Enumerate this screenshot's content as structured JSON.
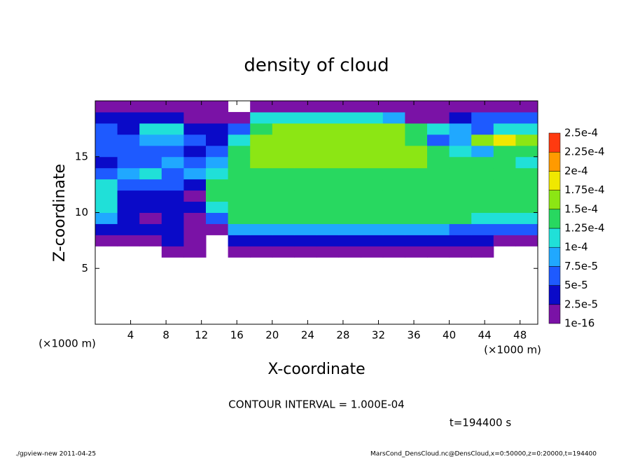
{
  "chart_data": {
    "type": "heatmap",
    "title": "density of cloud",
    "xlabel": "X-coordinate",
    "ylabel": "Z-coordinate",
    "xunit": "(×1000 m)",
    "yunit": "(×1000 m)",
    "annotation": "CONTOUR INTERVAL = 1.000E-04",
    "time": "t=194400 s",
    "footer_left": "./gpview-new  2011-04-25",
    "footer_right": "MarsCond_DensCloud.nc@DensCloud,x=0:50000,z=0:20000,t=194400",
    "xlim": [
      0,
      50
    ],
    "ylim": [
      0,
      20
    ],
    "xticks": [
      4,
      8,
      12,
      16,
      20,
      24,
      28,
      32,
      36,
      40,
      44,
      48
    ],
    "yticks": [
      5,
      10,
      15
    ],
    "levels": [
      {
        "value": 1e-16,
        "label": "1e-16"
      },
      {
        "value": 2.5e-05,
        "label": "2.5e-5"
      },
      {
        "value": 5e-05,
        "label": "5e-5"
      },
      {
        "value": 7.5e-05,
        "label": "7.5e-5"
      },
      {
        "value": 0.0001,
        "label": "1e-4"
      },
      {
        "value": 0.000125,
        "label": "1.25e-4"
      },
      {
        "value": 0.00015,
        "label": "1.5e-4"
      },
      {
        "value": 0.000175,
        "label": "1.75e-4"
      },
      {
        "value": 0.0002,
        "label": "2e-4"
      },
      {
        "value": 0.000225,
        "label": "2.25e-4"
      },
      {
        "value": 0.00025,
        "label": "2.5e-4"
      }
    ],
    "colors": [
      "#7a12a6",
      "#0a0ac8",
      "#1e5aff",
      "#20a8ff",
      "#20e0d8",
      "#28d860",
      "#8ce614",
      "#f0e800",
      "#ff9a00",
      "#ff3a10"
    ],
    "x": [
      1.25,
      3.75,
      6.25,
      8.75,
      11.25,
      13.75,
      16.25,
      18.75,
      21.25,
      23.75,
      26.25,
      28.75,
      31.25,
      33.75,
      36.25,
      38.75,
      41.25,
      43.75,
      46.25,
      48.75
    ],
    "y": [
      6.5,
      7.5,
      8.5,
      9.5,
      10.5,
      11.5,
      12.5,
      13.5,
      14.5,
      15.5,
      16.5,
      17.5,
      18.5,
      19.5
    ],
    "z": [
      [
        null,
        null,
        null,
        1.2e-05,
        1.2e-05,
        null,
        1.5e-05,
        1.5e-05,
        1.5e-05,
        1.5e-05,
        1.5e-05,
        1.5e-05,
        1.5e-05,
        1.5e-05,
        1.5e-05,
        1.5e-05,
        1.5e-05,
        1.5e-05,
        null,
        null
      ],
      [
        1.5e-05,
        2e-05,
        2e-05,
        2.5e-05,
        2e-05,
        null,
        4e-05,
        4.5e-05,
        4.5e-05,
        4.5e-05,
        4.5e-05,
        4.5e-05,
        4.5e-05,
        4.5e-05,
        4.5e-05,
        4.5e-05,
        4e-05,
        3e-05,
        2e-05,
        2e-05
      ],
      [
        3e-05,
        3e-05,
        2.5e-05,
        3e-05,
        2e-05,
        1.5e-05,
        8e-05,
        9e-05,
        9e-05,
        9e-05,
        9e-05,
        9e-05,
        9e-05,
        9e-05,
        9e-05,
        8.5e-05,
        7e-05,
        6e-05,
        5e-05,
        5e-05
      ],
      [
        8e-05,
        3e-05,
        2e-05,
        2.5e-05,
        2e-05,
        5e-05,
        0.00013,
        0.00014,
        0.000145,
        0.000145,
        0.000145,
        0.000145,
        0.000145,
        0.000145,
        0.00014,
        0.00014,
        0.00013,
        0.00011,
        0.00011,
        0.000105
      ],
      [
        0.000105,
        3e-05,
        2.5e-05,
        3e-05,
        2.5e-05,
        0.00011,
        0.000145,
        0.000145,
        0.000145,
        0.000145,
        0.000145,
        0.000145,
        0.000145,
        0.000145,
        0.000145,
        0.00014,
        0.00014,
        0.00014,
        0.000135,
        0.00013
      ],
      [
        0.00011,
        4e-05,
        4e-05,
        3e-05,
        2e-05,
        0.00013,
        0.000145,
        0.000145,
        0.000145,
        0.000145,
        0.000145,
        0.000145,
        0.000145,
        0.000145,
        0.000145,
        0.000145,
        0.00014,
        0.00014,
        0.00014,
        0.000135
      ],
      [
        0.0001,
        5e-05,
        7e-05,
        5e-05,
        4e-05,
        0.00013,
        0.000145,
        0.000145,
        0.000145,
        0.000145,
        0.000145,
        0.000145,
        0.000145,
        0.000145,
        0.000145,
        0.000145,
        0.000145,
        0.00014,
        0.00014,
        0.00014
      ],
      [
        5e-05,
        8e-05,
        0.00011,
        7e-05,
        8e-05,
        0.0001,
        0.000145,
        0.000145,
        0.000145,
        0.000145,
        0.000145,
        0.000145,
        0.000145,
        0.000145,
        0.000145,
        0.000145,
        0.000145,
        0.00014,
        0.000135,
        0.000135
      ],
      [
        4e-05,
        6e-05,
        7e-05,
        8e-05,
        6e-05,
        9e-05,
        0.000135,
        0.00015,
        0.00015,
        0.00015,
        0.00015,
        0.00015,
        0.00015,
        0.00015,
        0.00015,
        0.000145,
        0.00014,
        0.000135,
        0.00013,
        0.00012
      ],
      [
        5e-05,
        5e-05,
        7e-05,
        6e-05,
        4e-05,
        5e-05,
        0.00013,
        0.00015,
        0.00015,
        0.00015,
        0.00015,
        0.00015,
        0.00015,
        0.00015,
        0.00015,
        0.00013,
        0.0001,
        9e-05,
        0.00013,
        0.00014
      ],
      [
        6e-05,
        5e-05,
        8e-05,
        9e-05,
        5e-05,
        4e-05,
        0.00012,
        0.00015,
        0.00015,
        0.00015,
        0.00015,
        0.00015,
        0.00015,
        0.000155,
        0.00013,
        6e-05,
        9e-05,
        0.00016,
        0.00018,
        0.00015
      ],
      [
        6e-05,
        4e-05,
        0.00011,
        0.000105,
        4e-05,
        3e-05,
        5e-05,
        0.00014,
        0.00015,
        0.00015,
        0.00015,
        0.00015,
        0.00015,
        0.00015,
        0.00013,
        0.0001,
        8e-05,
        6e-05,
        0.00011,
        0.00011
      ],
      [
        4e-05,
        3e-05,
        3e-05,
        2.5e-05,
        2e-05,
        2e-05,
        2e-05,
        0.00011,
        0.00012,
        0.00012,
        0.00012,
        0.00012,
        0.00011,
        8e-05,
        2e-05,
        2e-05,
        4e-05,
        5e-05,
        5e-05,
        5e-05
      ],
      [
        1.5e-05,
        1.5e-05,
        1.5e-05,
        1.5e-05,
        1.5e-05,
        1.5e-05,
        null,
        1.5e-05,
        1.5e-05,
        1.5e-05,
        1.5e-05,
        1.5e-05,
        1.5e-05,
        1.5e-05,
        1.5e-05,
        1.5e-05,
        1.5e-05,
        1.5e-05,
        1.5e-05,
        1.5e-05
      ]
    ]
  }
}
